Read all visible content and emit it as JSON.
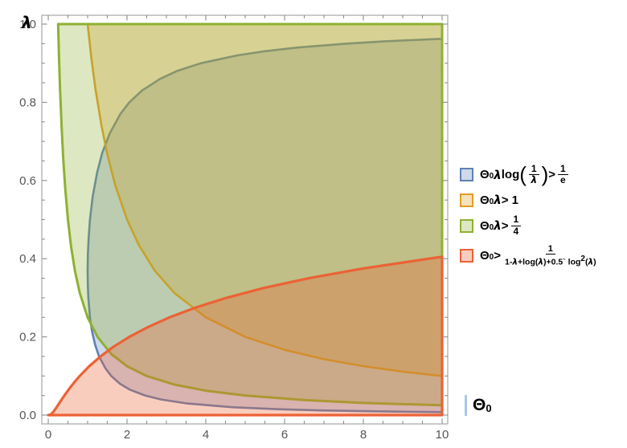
{
  "axes": {
    "x_label_symbol": "Θ",
    "x_label_sub": "0",
    "y_label": "λ",
    "x_ticks": [
      {
        "v": 0,
        "label": "0"
      },
      {
        "v": 2,
        "label": "2"
      },
      {
        "v": 4,
        "label": "4"
      },
      {
        "v": 6,
        "label": "6"
      },
      {
        "v": 8,
        "label": "8"
      },
      {
        "v": 10,
        "label": "10"
      }
    ],
    "y_ticks": [
      {
        "v": 0,
        "label": "0.0"
      },
      {
        "v": 0.2,
        "label": "0.2"
      },
      {
        "v": 0.4,
        "label": "0.4"
      },
      {
        "v": 0.6,
        "label": "0.6"
      },
      {
        "v": 0.8,
        "label": "0.8"
      },
      {
        "v": 1,
        "label": "1.0"
      }
    ],
    "x_minor_step": 0.5,
    "y_minor_step": 0.05,
    "frame_color": "#a6a6a6",
    "tick_color": "#8c8c8c",
    "tick_label_color": "#565656",
    "axis_label_mark_color": "#a9c6e8"
  },
  "chart_data": {
    "type": "area",
    "subtype": "region-plot",
    "title": "",
    "xlabel": "Θ0",
    "ylabel": "λ",
    "xlim": [
      0,
      10
    ],
    "ylim": [
      0,
      1
    ],
    "grid": false,
    "legend_position": "right",
    "series": [
      {
        "id": "blue",
        "inequality": "Θ0 λ log(1/λ) > 1/e",
        "boundary_formula": "Θ0 = 1/(e λ log(1/λ))",
        "color": "#5E81B5",
        "fill": "rgba(94,129,181,0.30)",
        "stroke_width": 2.6,
        "polygon": [
          [
            10,
            0.0075
          ],
          [
            9.53,
            0.008
          ],
          [
            8.68,
            0.009
          ],
          [
            7.99,
            0.01
          ],
          [
            6.93,
            0.012
          ],
          [
            5.84,
            0.015
          ],
          [
            4.7,
            0.02
          ],
          [
            3.5,
            0.03
          ],
          [
            2.86,
            0.04
          ],
          [
            2.46,
            0.05
          ],
          [
            2.07,
            0.065
          ],
          [
            1.82,
            0.08
          ],
          [
            1.6,
            0.1
          ],
          [
            1.45,
            0.12
          ],
          [
            1.29,
            0.15
          ],
          [
            1.19,
            0.18
          ],
          [
            1.11,
            0.215
          ],
          [
            1.06,
            0.25
          ],
          [
            1.019,
            0.3
          ],
          [
            1.006,
            0.33
          ],
          [
            1.0,
            0.368
          ],
          [
            1.006,
            0.41
          ],
          [
            1.024,
            0.45
          ],
          [
            1.06,
            0.5
          ],
          [
            1.13,
            0.56
          ],
          [
            1.24,
            0.62
          ],
          [
            1.37,
            0.67
          ],
          [
            1.56,
            0.72
          ],
          [
            1.83,
            0.77
          ],
          [
            2.06,
            0.8
          ],
          [
            2.38,
            0.83
          ],
          [
            2.84,
            0.86
          ],
          [
            3.27,
            0.88
          ],
          [
            3.88,
            0.9
          ],
          [
            4.8,
            0.92
          ],
          [
            5.45,
            0.93
          ],
          [
            6.33,
            0.94
          ],
          [
            7.55,
            0.95
          ],
          [
            8.55,
            0.956
          ],
          [
            10,
            0.9625
          ]
        ]
      },
      {
        "id": "orange",
        "inequality": "Θ0 λ > 1",
        "boundary_formula": "λ = 1/Θ0",
        "color": "#E19C24",
        "fill": "rgba(225,156,36,0.30)",
        "stroke_width": 2.6,
        "polygon": [
          [
            1,
            1
          ],
          [
            1.1,
            0.909
          ],
          [
            1.2,
            0.833
          ],
          [
            1.35,
            0.741
          ],
          [
            1.5,
            0.667
          ],
          [
            1.7,
            0.588
          ],
          [
            2,
            0.5
          ],
          [
            2.3,
            0.435
          ],
          [
            2.7,
            0.37
          ],
          [
            3.2,
            0.3125
          ],
          [
            4,
            0.25
          ],
          [
            5,
            0.2
          ],
          [
            6,
            0.167
          ],
          [
            7,
            0.143
          ],
          [
            8,
            0.125
          ],
          [
            9,
            0.111
          ],
          [
            10,
            0.1
          ],
          [
            10,
            1
          ]
        ]
      },
      {
        "id": "green",
        "inequality": "Θ0 λ > 1/4",
        "boundary_formula": "λ = 1/(4 Θ0)",
        "color": "#8FB032",
        "fill": "rgba(143,176,50,0.30)",
        "stroke_width": 3.0,
        "polygon": [
          [
            0.25,
            1
          ],
          [
            0.275,
            0.909
          ],
          [
            0.3,
            0.833
          ],
          [
            0.34,
            0.735
          ],
          [
            0.38,
            0.658
          ],
          [
            0.43,
            0.581
          ],
          [
            0.5,
            0.5
          ],
          [
            0.58,
            0.431
          ],
          [
            0.68,
            0.368
          ],
          [
            0.8,
            0.3125
          ],
          [
            1,
            0.25
          ],
          [
            1.25,
            0.2
          ],
          [
            1.6,
            0.156
          ],
          [
            2,
            0.125
          ],
          [
            2.5,
            0.1
          ],
          [
            3.2,
            0.078
          ],
          [
            4,
            0.0625
          ],
          [
            5,
            0.05
          ],
          [
            6.5,
            0.0385
          ],
          [
            8,
            0.031
          ],
          [
            10,
            0.025
          ],
          [
            10,
            1
          ]
        ]
      },
      {
        "id": "red",
        "inequality": "Θ0 > 1/(1-λ+log(λ)+0.5 log²(λ))",
        "boundary_formula": "Θ0 = 1/(1-λ+log(λ)+0.5 log²(λ))",
        "color": "#EB6235",
        "fill": "rgba(235,98,53,0.32)",
        "stroke_width": 3.2,
        "polygon": [
          [
            0,
            0
          ],
          [
            0.056,
            0.001
          ],
          [
            0.103,
            0.005
          ],
          [
            0.143,
            0.01
          ],
          [
            0.212,
            0.02
          ],
          [
            0.277,
            0.03
          ],
          [
            0.342,
            0.04
          ],
          [
            0.41,
            0.05
          ],
          [
            0.554,
            0.07
          ],
          [
            0.672,
            0.085
          ],
          [
            0.8,
            0.1
          ],
          [
            1.04,
            0.125
          ],
          [
            1.33,
            0.15
          ],
          [
            1.66,
            0.175
          ],
          [
            2.06,
            0.2
          ],
          [
            2.53,
            0.225
          ],
          [
            3.08,
            0.25
          ],
          [
            3.74,
            0.275
          ],
          [
            4.53,
            0.3
          ],
          [
            5.47,
            0.325
          ],
          [
            6.61,
            0.35
          ],
          [
            7.99,
            0.375
          ],
          [
            9.66,
            0.4
          ],
          [
            10,
            0.405
          ],
          [
            10,
            0
          ]
        ]
      }
    ]
  },
  "legend": {
    "items": [
      {
        "id": "blue",
        "color": "#5E81B5",
        "fill": "rgba(94,129,181,0.30)",
        "text_plain": "Θ0 λ log(1/λ) > 1/e",
        "tokens": [
          {
            "t": "Θ"
          },
          {
            "t": "0",
            "sub": true
          },
          {
            "t": " "
          },
          {
            "t": "λ",
            "i": true
          },
          {
            "t": " log"
          },
          {
            "p": "("
          },
          {
            "f": {
              "n": [
                {
                  "t": "1"
                }
              ],
              "d": [
                {
                  "t": "λ",
                  "i": true
                }
              ]
            }
          },
          {
            "p": ")"
          },
          {
            "t": " > "
          },
          {
            "f": {
              "n": [
                {
                  "t": "1"
                }
              ],
              "d": [
                {
                  "t": "e"
                }
              ]
            }
          }
        ]
      },
      {
        "id": "orange",
        "color": "#E19C24",
        "fill": "rgba(225,156,36,0.30)",
        "text_plain": "Θ0 λ > 1",
        "tokens": [
          {
            "t": "Θ"
          },
          {
            "t": "0",
            "sub": true
          },
          {
            "t": " "
          },
          {
            "t": "λ",
            "i": true
          },
          {
            "t": " > 1"
          }
        ]
      },
      {
        "id": "green",
        "color": "#8FB032",
        "fill": "rgba(143,176,50,0.30)",
        "text_plain": "Θ0 λ > 1/4",
        "tokens": [
          {
            "t": "Θ"
          },
          {
            "t": "0",
            "sub": true
          },
          {
            "t": " "
          },
          {
            "t": "λ",
            "i": true
          },
          {
            "t": " > "
          },
          {
            "f": {
              "n": [
                {
                  "t": "1"
                }
              ],
              "d": [
                {
                  "t": "4"
                }
              ]
            }
          }
        ]
      },
      {
        "id": "red",
        "color": "#EB6235",
        "fill": "rgba(235,98,53,0.32)",
        "text_plain": "Θ0 > 1/(1-λ+log(λ)+0.5` log²(λ))",
        "tokens": [
          {
            "t": "Θ"
          },
          {
            "t": "0",
            "sub": true
          },
          {
            "t": " > "
          },
          {
            "f": {
              "small": true,
              "n": [
                {
                  "t": "1"
                }
              ],
              "d": [
                {
                  "t": "1-"
                },
                {
                  "t": "λ",
                  "i": true
                },
                {
                  "t": "+log("
                },
                {
                  "t": "λ",
                  "i": true
                },
                {
                  "t": ")+0.5` log"
                },
                {
                  "t": "2",
                  "sup": true
                },
                {
                  "t": "("
                },
                {
                  "t": "λ",
                  "i": true
                },
                {
                  "t": ")"
                }
              ]
            }
          }
        ]
      }
    ]
  }
}
